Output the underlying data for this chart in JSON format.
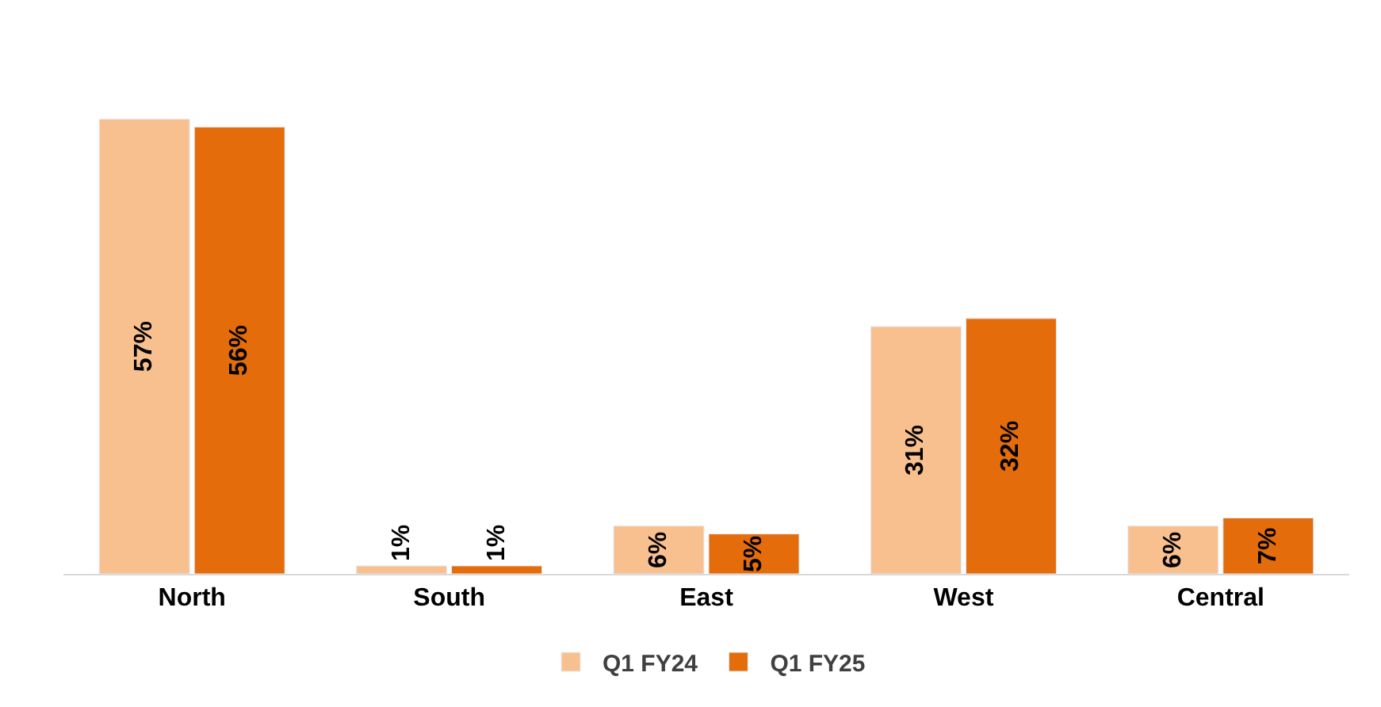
{
  "chart_data": {
    "type": "bar",
    "categories": [
      "North",
      "South",
      "East",
      "West",
      "Central"
    ],
    "series": [
      {
        "name": "Q1 FY24",
        "color": "#f9c08f",
        "values": [
          57,
          1,
          6,
          31,
          6
        ],
        "value_labels": [
          "57%",
          "1%",
          "6%",
          "31%",
          "6%"
        ]
      },
      {
        "name": "Q1 FY25",
        "color": "#e46c0a",
        "values": [
          56,
          1,
          5,
          32,
          7
        ],
        "value_labels": [
          "56%",
          "1%",
          "5%",
          "32%",
          "7%"
        ]
      }
    ],
    "legend": "bottom",
    "tick_labels": "x"
  }
}
